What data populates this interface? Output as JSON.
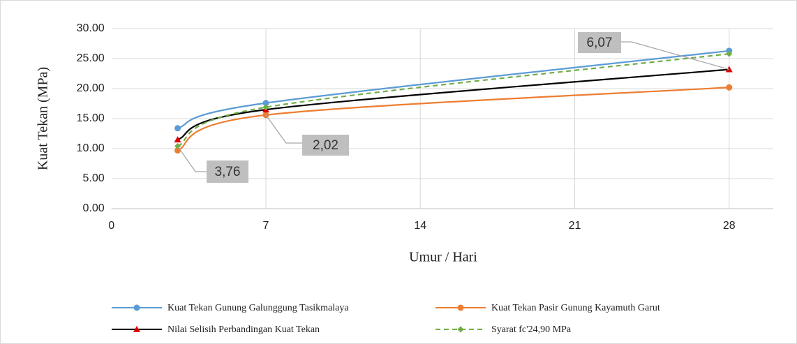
{
  "chart_data": {
    "type": "line",
    "y_label": "Kuat Tekan (MPa)",
    "x_label": "Umur / Hari",
    "x": [
      3,
      7,
      28
    ],
    "series": [
      {
        "name": "Kuat Tekan Gunung Galunggung Tasikmalaya",
        "color": "#5b9bd5",
        "marker": "circle",
        "values": [
          13.4,
          17.6,
          26.3
        ]
      },
      {
        "name": "Kuat Tekan Pasir Gunung Kayamuth Garut",
        "color": "#ed7d31",
        "marker": "circle",
        "values": [
          9.7,
          15.6,
          20.2
        ]
      },
      {
        "name": "Nilai Selisih Perbandingan Kuat Tekan",
        "color": "#000000",
        "marker": "triangle",
        "marker_color": "#e00000",
        "values": [
          11.5,
          16.5,
          23.2
        ]
      },
      {
        "name": "Syarat fc'24,90 MPa",
        "color": "#70ad47",
        "marker": "diamond",
        "dash": true,
        "values": [
          10.4,
          16.9,
          25.8
        ]
      }
    ],
    "annotations": [
      "3,76",
      "2,02",
      "6,07"
    ],
    "xlim": [
      0,
      30
    ],
    "xticks": [
      0,
      7,
      14,
      21,
      28
    ],
    "ylim": [
      0,
      30
    ],
    "yticks": [
      {
        "value": 0,
        "label": "0.00"
      },
      {
        "value": 5,
        "label": "5.00"
      },
      {
        "value": 10,
        "label": "10.00"
      },
      {
        "value": 15,
        "label": "15.00"
      },
      {
        "value": 20,
        "label": "20.00"
      },
      {
        "value": 25,
        "label": "25.00"
      },
      {
        "value": 30,
        "label": "30.00"
      }
    ],
    "grid": true,
    "legend": "bottom"
  }
}
